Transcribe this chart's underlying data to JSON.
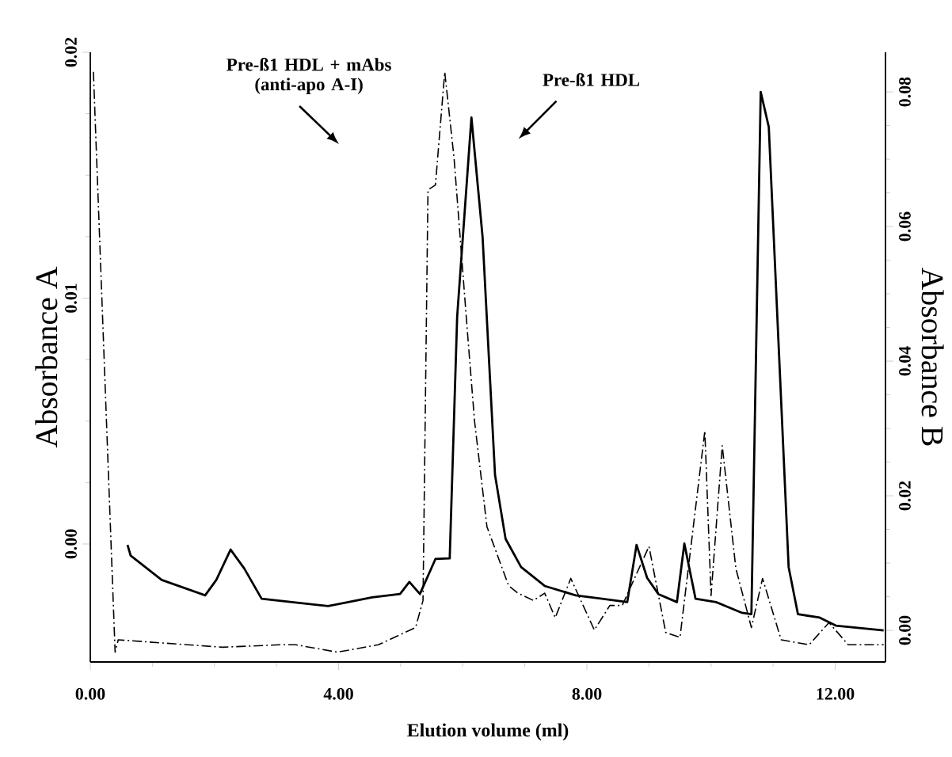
{
  "chart_data": {
    "type": "line",
    "xlabel": "Elution volume (ml)",
    "ylabel": "Absorbance A",
    "y2label": "Absorbance B",
    "xlim": [
      0,
      12.81
    ],
    "ylim": [
      -0.0048,
      0.02
    ],
    "y2lim": [
      -0.0047,
      0.0859
    ],
    "xticks": [
      {
        "value": 0,
        "label": "0.00"
      },
      {
        "value": 4,
        "label": "4.00"
      },
      {
        "value": 8,
        "label": "8.00"
      },
      {
        "value": 12,
        "label": "12.00"
      }
    ],
    "yticks": [
      {
        "value": 0,
        "label": "0.00"
      },
      {
        "value": 0.01,
        "label": "0.01"
      },
      {
        "value": 0.02,
        "label": "0.02"
      }
    ],
    "y2ticks": [
      {
        "value": 0,
        "label": "0.00"
      },
      {
        "value": 0.02,
        "label": "0.02"
      },
      {
        "value": 0.04,
        "label": "0.04"
      },
      {
        "value": 0.06,
        "label": "0.06"
      },
      {
        "value": 0.08,
        "label": "0.08"
      }
    ],
    "series": [
      {
        "color": "#000000",
        "line_style": "solid",
        "axis": "y2",
        "x": [
          0.6,
          0.65,
          1.15,
          1.85,
          2.03,
          2.26,
          2.48,
          2.76,
          3.83,
          4.54,
          4.99,
          5.14,
          5.31,
          5.56,
          5.79,
          5.91,
          6.14,
          6.32,
          6.52,
          6.69,
          6.94,
          7.32,
          7.82,
          8.65,
          8.8,
          8.97,
          9.15,
          9.45,
          9.57,
          9.75,
          10.08,
          10.5,
          10.65,
          10.8,
          10.93,
          11.25,
          11.4,
          11.75,
          12.01,
          12.78
        ],
        "values": [
          0.0127,
          0.0111,
          0.0075,
          0.0052,
          0.0075,
          0.012,
          0.0092,
          0.0047,
          0.0036,
          0.0049,
          0.0054,
          0.0072,
          0.0054,
          0.0106,
          0.0107,
          0.0466,
          0.0762,
          0.0584,
          0.0231,
          0.0136,
          0.0094,
          0.0066,
          0.0052,
          0.0042,
          0.0127,
          0.0078,
          0.0054,
          0.0042,
          0.0129,
          0.0047,
          0.0042,
          0.0026,
          0.0024,
          0.08,
          0.0748,
          0.0094,
          0.0024,
          0.0019,
          0.0007,
          0.0
        ]
      },
      {
        "color": "#000000",
        "line_style": "dashdot",
        "x": [
          0.05,
          0.4,
          0.45,
          2.13,
          3.06,
          3.31,
          3.98,
          4.64,
          5.24,
          5.36,
          5.44,
          5.56,
          5.71,
          5.86,
          6.07,
          6.19,
          6.39,
          6.74,
          6.89,
          7.14,
          7.32,
          7.49,
          7.74,
          8.12,
          8.37,
          8.57,
          9.0,
          9.27,
          9.5,
          9.9,
          10.0,
          10.18,
          10.4,
          10.65,
          10.83,
          11.13,
          11.58,
          11.9,
          12.21,
          12.78
        ],
        "values": [
          0.0192,
          -0.0044,
          -0.0039,
          -0.0042,
          -0.0041,
          -0.0041,
          -0.0044,
          -0.0041,
          -0.0034,
          -0.0023,
          0.0144,
          0.0146,
          0.0192,
          0.0157,
          0.0088,
          0.005,
          0.0007,
          -0.0017,
          -0.002,
          -0.0023,
          -0.002,
          -0.003,
          -0.0014,
          -0.0035,
          -0.0025,
          -0.0025,
          -0.0001,
          -0.0036,
          -0.0038,
          0.0046,
          -0.0021,
          0.004,
          -0.001,
          -0.0034,
          -0.0014,
          -0.0039,
          -0.0041,
          -0.0032,
          -0.0041,
          -0.0041
        ]
      }
    ],
    "annotations": [
      "Pre-ß1 HDL + mAbs (anti-apo A-I)",
      "Pre-ß1 HDL"
    ]
  }
}
